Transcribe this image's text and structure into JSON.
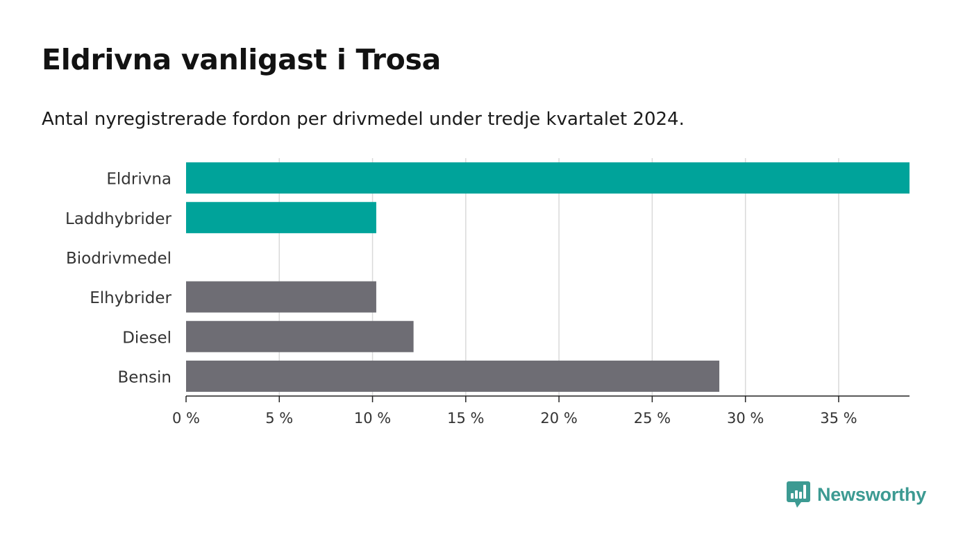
{
  "header": {
    "title": "Eldrivna vanligast i Trosa",
    "subtitle": "Antal nyregistrerade fordon per drivmedel under tredje kvartalet 2024."
  },
  "brand": {
    "name": "Newsworthy",
    "icon": "newsworthy-logo-icon",
    "color": "#3c9a92"
  },
  "chart_data": {
    "type": "bar",
    "orientation": "horizontal",
    "title": "Eldrivna vanligast i Trosa",
    "subtitle": "Antal nyregistrerade fordon per drivmedel under tredje kvartalet 2024.",
    "xlabel": "",
    "ylabel": "",
    "categories": [
      "Eldrivna",
      "Laddhybrider",
      "Biodrivmedel",
      "Elhybrider",
      "Diesel",
      "Bensin"
    ],
    "values": [
      38.8,
      10.2,
      0,
      10.2,
      12.2,
      28.6
    ],
    "bar_colors": [
      "#00a39a",
      "#00a39a",
      "#00a39a",
      "#6e6d74",
      "#6e6d74",
      "#6e6d74"
    ],
    "xlim": [
      0,
      38.8
    ],
    "x_ticks": [
      0,
      5,
      10,
      15,
      20,
      25,
      30,
      35
    ],
    "x_tick_labels": [
      "0 %",
      "5 %",
      "10 %",
      "15 %",
      "20 %",
      "25 %",
      "30 %",
      "35 %"
    ],
    "grid": true,
    "legend": "none"
  }
}
